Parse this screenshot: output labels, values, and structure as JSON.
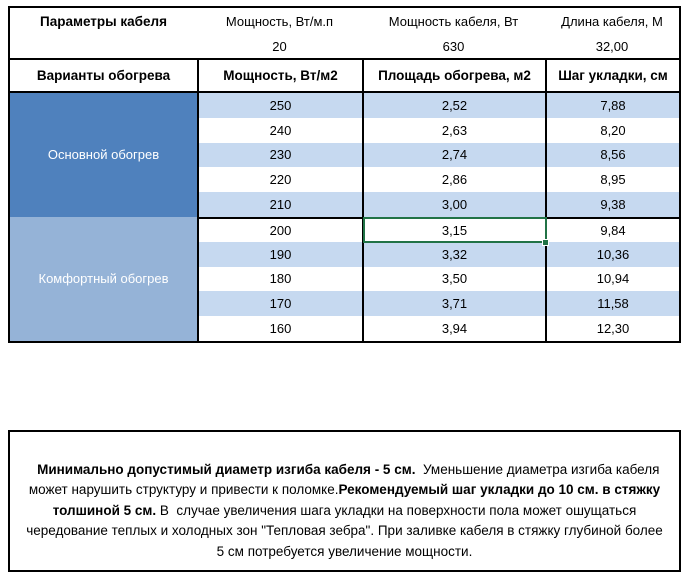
{
  "table": {
    "params_header": {
      "col1": "Параметры кабеля",
      "col2": "Мощность, Вт/м.п",
      "col3": "Мощность кабеля, Вт",
      "col4": "Длина кабеля, М"
    },
    "params_values": {
      "power_per_m": "20",
      "cable_power": "630",
      "cable_length": "32,00"
    },
    "columns_header": {
      "col1": "Варианты обогрева",
      "col2": "Мощность, Вт/м2",
      "col3": "Площадь обогрева, м2",
      "col4": "Шаг укладки, см"
    },
    "sections": [
      {
        "label": "Основной обогрев",
        "rows": [
          [
            "250",
            "2,52",
            "7,88"
          ],
          [
            "240",
            "2,63",
            "8,20"
          ],
          [
            "230",
            "2,74",
            "8,56"
          ],
          [
            "220",
            "2,86",
            "8,95"
          ],
          [
            "210",
            "3,00",
            "9,38"
          ]
        ]
      },
      {
        "label": "Комфортный обогрев",
        "rows": [
          [
            "200",
            "3,15",
            "9,84"
          ],
          [
            "190",
            "3,32",
            "10,36"
          ],
          [
            "180",
            "3,50",
            "10,94"
          ],
          [
            "170",
            "3,71",
            "11,58"
          ],
          [
            "160",
            "3,94",
            "12,30"
          ]
        ]
      }
    ],
    "selected_cell": {
      "section": 1,
      "row": 0,
      "col": 1,
      "value": "3,15"
    }
  },
  "note": {
    "segments": [
      {
        "text": "Минимально допустимый диаметр изгиба кабеля - 5 см.",
        "bold": true
      },
      {
        "text": "  Уменьшение диаметра изгиба кабеля может нарушить структуру и привести к поломке.",
        "bold": false
      },
      {
        "text": "Рекомендуемый шаг укладки до 10 см. в стяжку толшиной 5 см.",
        "bold": true
      },
      {
        "text": " В  случае увеличения шага укладки на поверхности пола может ошущаться чередование теплых и холодных зон \"Тепловая зебра\". При заливке кабеля в стяжку глубиной более 5 см потребуется увеличение мощности.",
        "bold": false
      }
    ]
  },
  "colors": {
    "section_main_bg": "#4F81BD",
    "section_comfort_bg": "#95B3D7",
    "row_band_bg": "#C6D9F0",
    "selection_green": "#217346",
    "border_black": "#000000"
  }
}
